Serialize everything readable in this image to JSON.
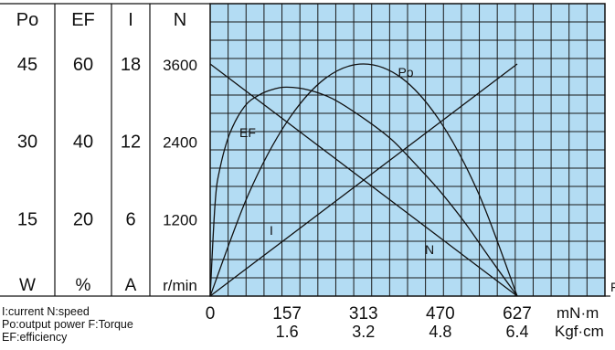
{
  "chart_data": {
    "type": "line",
    "title": "",
    "left_scales": [
      {
        "header": "Po",
        "ticks": [
          "45",
          "30",
          "15"
        ],
        "unit": "W"
      },
      {
        "header": "EF",
        "ticks": [
          "60",
          "40",
          "20"
        ],
        "unit": "%"
      },
      {
        "header": "I",
        "ticks": [
          "18",
          "12",
          "6"
        ],
        "unit": "A"
      },
      {
        "header": "N",
        "ticks": [
          "3600",
          "2400",
          "1200"
        ],
        "unit": "r/min"
      }
    ],
    "x_axis": {
      "label": "F",
      "ticks_mNm": [
        "0",
        "157",
        "313",
        "470",
        "627"
      ],
      "ticks_kgfcm": [
        "1.6",
        "3.2",
        "4.8",
        "6.4"
      ],
      "unit_mNm": "mN·m",
      "unit_kgfcm": "Kgf·cm",
      "range_mNm": [
        0,
        627
      ]
    },
    "grid": true,
    "series": [
      {
        "name": "Po",
        "unit": "W",
        "x": [
          0,
          78,
          157,
          235,
          313,
          392,
          470,
          549,
          627
        ],
        "y": [
          0,
          19.7,
          33.8,
          42.2,
          45,
          42.2,
          33.8,
          19.7,
          0
        ]
      },
      {
        "name": "EF",
        "unit": "%",
        "x": [
          0,
          10,
          20,
          40,
          70,
          100,
          130,
          157,
          200,
          250,
          313,
          370,
          420,
          470,
          520,
          570,
          627
        ],
        "y": [
          0,
          24,
          33,
          42,
          49,
          52,
          53.5,
          54,
          53.3,
          51,
          46,
          40.5,
          34,
          27,
          19,
          10,
          0
        ]
      },
      {
        "name": "I",
        "unit": "A",
        "x": [
          0,
          627
        ],
        "y": [
          0,
          18
        ]
      },
      {
        "name": "N",
        "unit": "r/min",
        "x": [
          0,
          627
        ],
        "y": [
          3600,
          0
        ]
      }
    ]
  },
  "legend_notes": [
    "I:current  N:speed",
    "Po:output power  F:Torque",
    "EF:efficiency"
  ]
}
